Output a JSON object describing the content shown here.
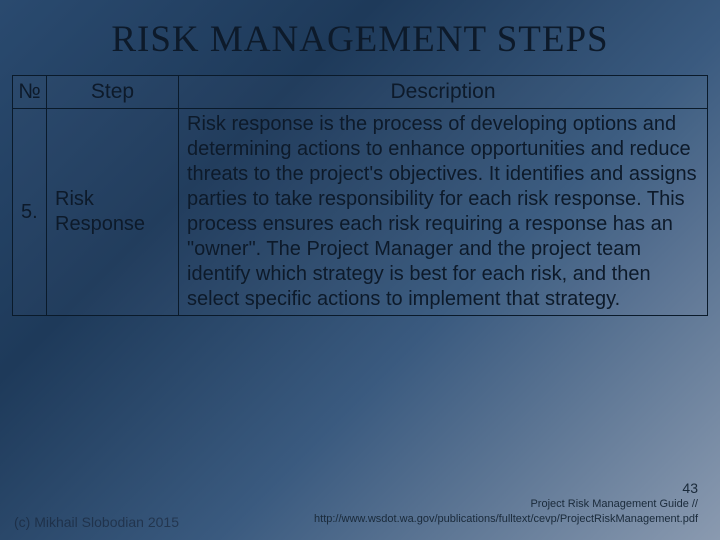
{
  "title": "RISK MANAGEMENT STEPS",
  "headers": {
    "num": "№",
    "step": "Step",
    "desc": "Description"
  },
  "row": {
    "num": "5.",
    "step": "Risk Response",
    "desc": "Risk response is the process of developing options and determining actions to enhance opportunities and reduce threats to the project's objectives. It identifies and assigns parties to take responsibility for each risk response. This process ensures each risk requiring a response has an \"owner\". The Project Manager and the project team identify which strategy is best for each risk, and then select specific actions to implement that strategy."
  },
  "pagenum": "43",
  "source_line1": "Project Risk Management Guide //",
  "source_line2": "http://www.wsdot.wa.gov/publications/fulltext/cevp/ProjectRiskManagement.pdf",
  "copyright": "(c) Mikhail Slobodian 2015",
  "colors": {
    "bg_grad_start": "#2a4a6f",
    "bg_grad_end": "#8a9ab0",
    "text": "#0d1a2a",
    "border": "#0a1a2a"
  },
  "fontsize": {
    "title": 37,
    "header": 21,
    "cell": 20,
    "footer": 11,
    "pagenum": 14
  }
}
